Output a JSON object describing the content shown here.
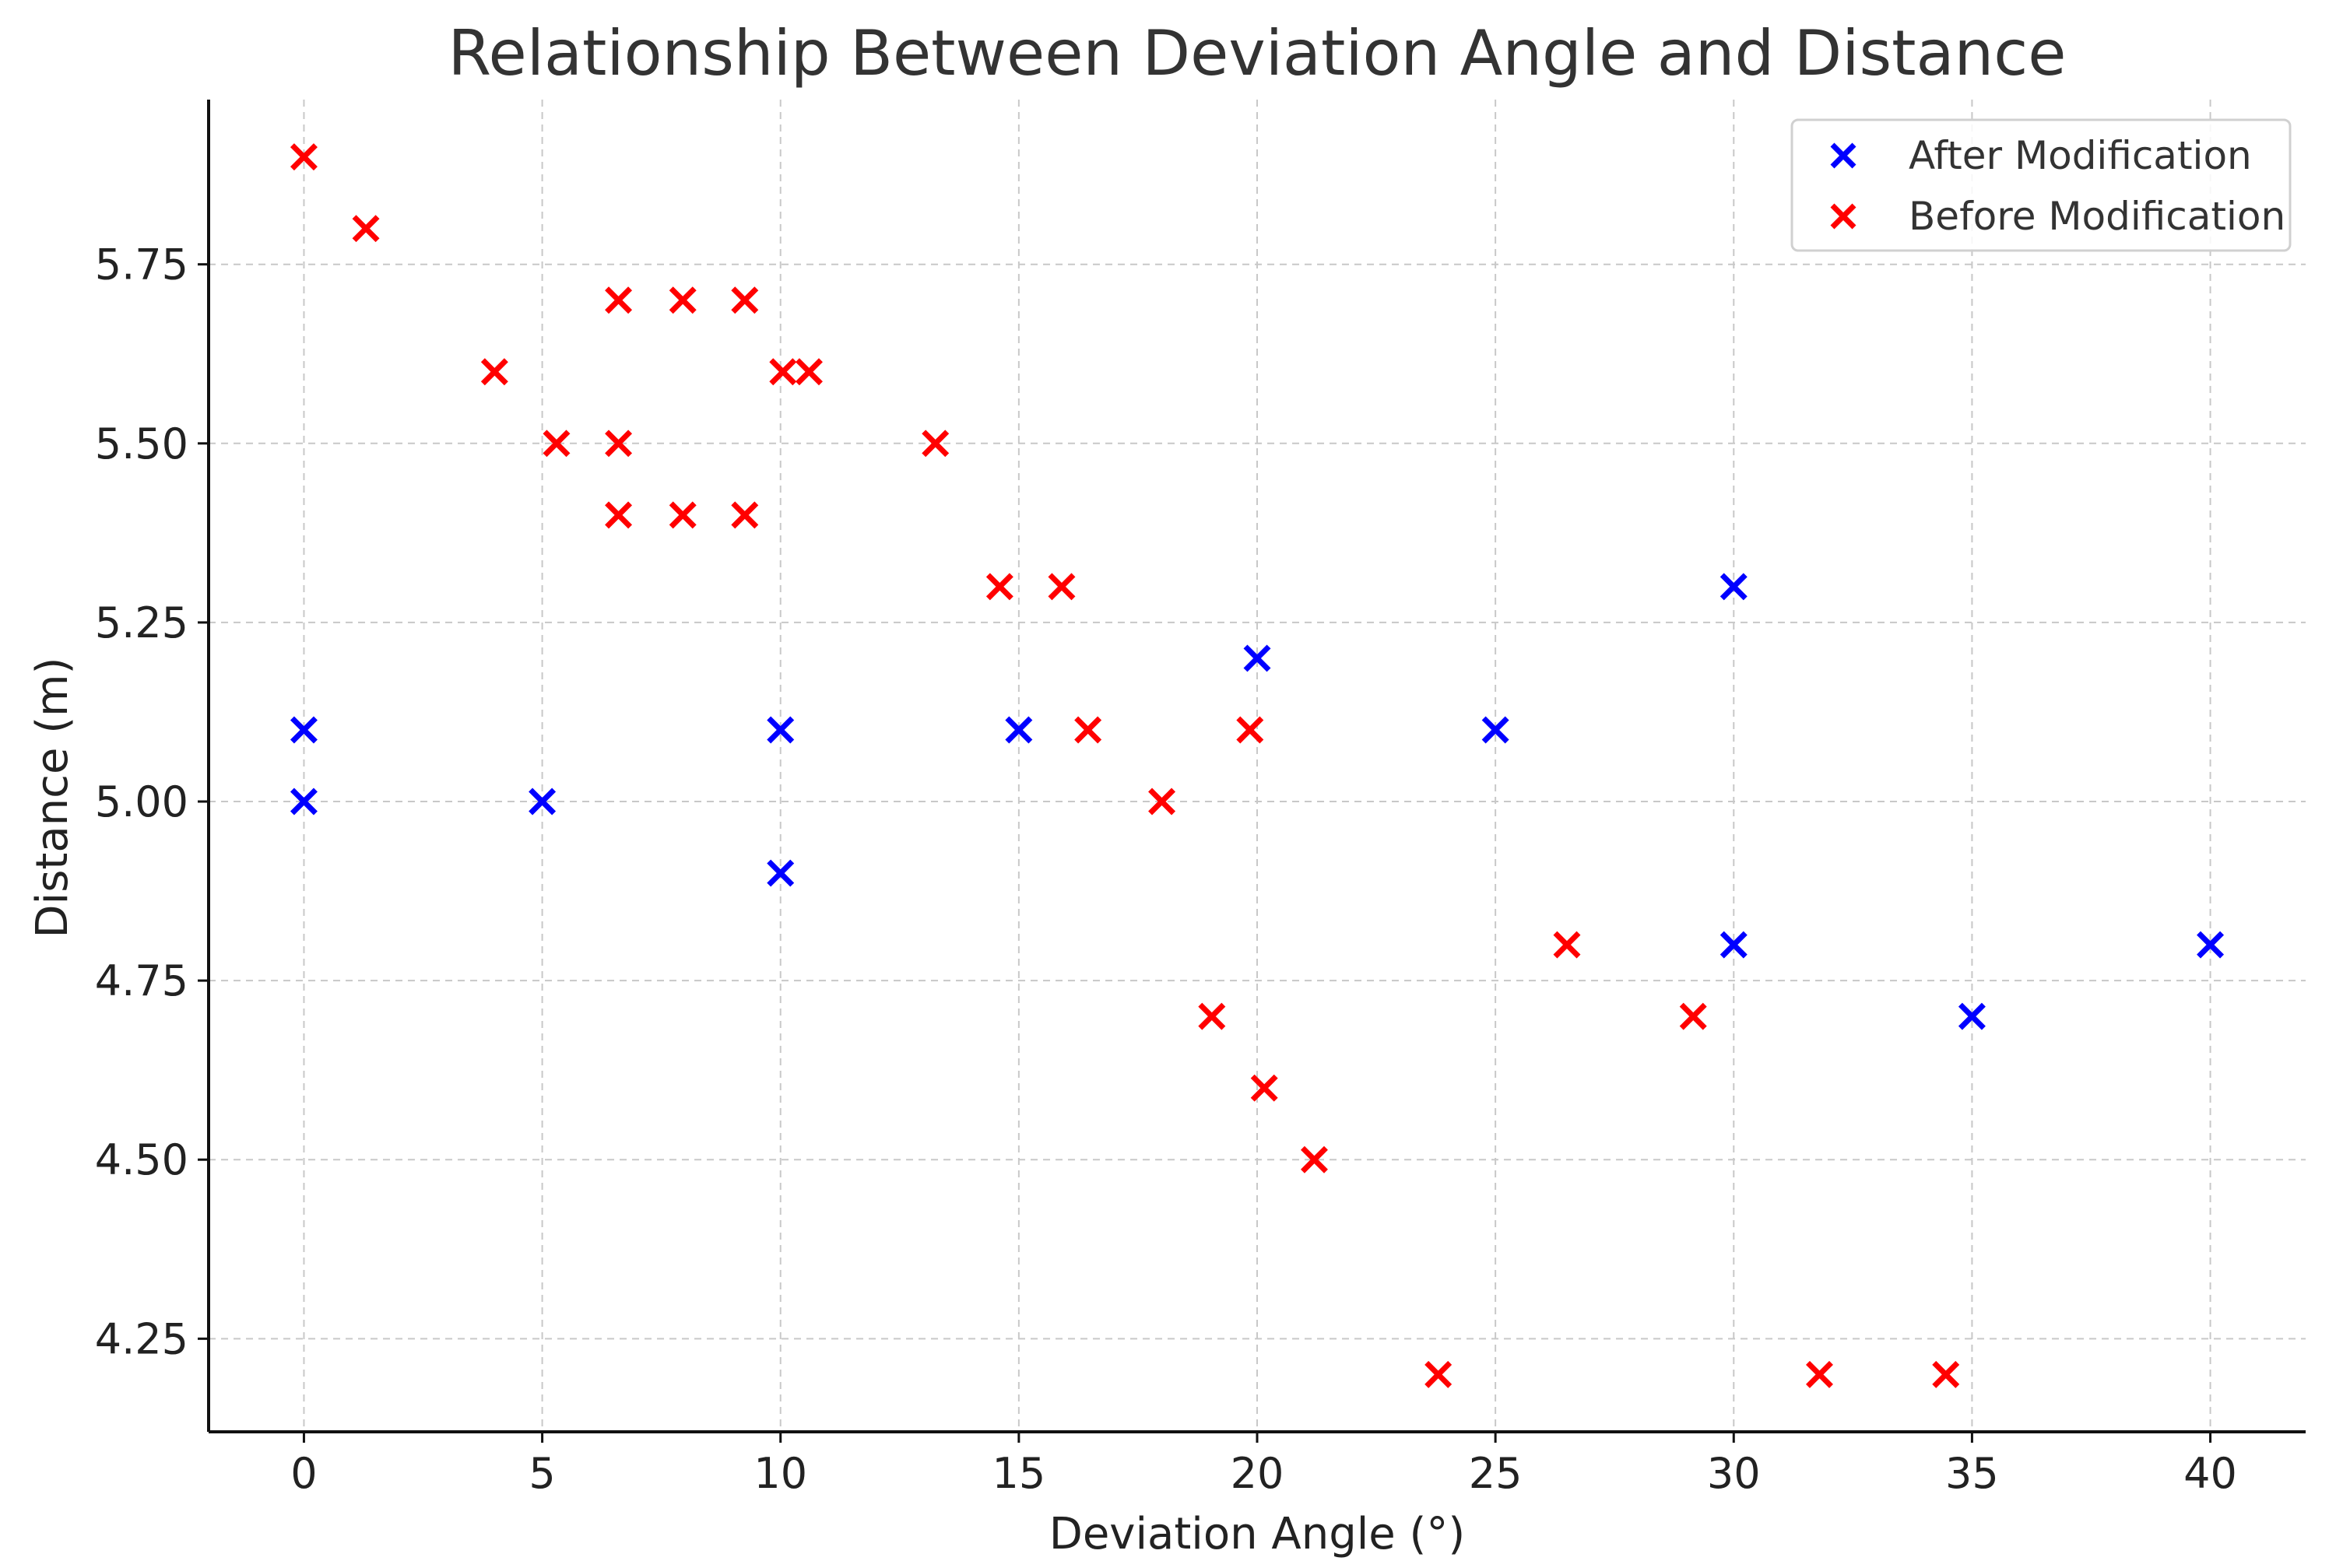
{
  "chart_data": {
    "type": "scatter",
    "title": "Relationship Between Deviation Angle and Distance",
    "xlabel": "Deviation Angle (°)",
    "ylabel": "Distance (m)",
    "xlim": [
      -2,
      42
    ],
    "ylim": [
      4.12,
      5.98
    ],
    "xticks": [
      0,
      5,
      10,
      15,
      20,
      25,
      30,
      35,
      40
    ],
    "xtick_labels": [
      "0",
      "5",
      "10",
      "15",
      "20",
      "25",
      "30",
      "35",
      "40"
    ],
    "yticks": [
      4.25,
      4.5,
      4.75,
      5.0,
      5.25,
      5.5,
      5.75
    ],
    "ytick_labels": [
      "4.25",
      "4.50",
      "4.75",
      "5.00",
      "5.25",
      "5.50",
      "5.75"
    ],
    "grid": true,
    "legend_position": "top-right",
    "marker": "x",
    "series": [
      {
        "name": "After Modification",
        "color": "#0000ff",
        "x": [
          0,
          0,
          5,
          10,
          10,
          15,
          20,
          25,
          30,
          30,
          35,
          40
        ],
        "y": [
          5.1,
          5.0,
          5.0,
          5.1,
          4.9,
          5.1,
          5.2,
          5.1,
          5.3,
          4.8,
          4.7,
          4.8
        ]
      },
      {
        "name": "Before Modification",
        "color": "#ff0000",
        "x": [
          0,
          1.3,
          4.0,
          5.3,
          6.6,
          6.6,
          6.6,
          7.95,
          7.95,
          9.25,
          9.25,
          10.05,
          10.6,
          13.25,
          14.6,
          15.9,
          16.45,
          18.0,
          19.05,
          19.85,
          20.15,
          21.2,
          23.8,
          26.5,
          29.15,
          31.8,
          34.45
        ],
        "y": [
          5.9,
          5.8,
          5.6,
          5.5,
          5.7,
          5.5,
          5.4,
          5.7,
          5.4,
          5.7,
          5.4,
          5.6,
          5.6,
          5.5,
          5.3,
          5.3,
          5.1,
          5.0,
          4.7,
          5.1,
          4.6,
          4.5,
          4.2,
          4.8,
          4.7,
          4.2,
          4.2
        ]
      }
    ]
  }
}
